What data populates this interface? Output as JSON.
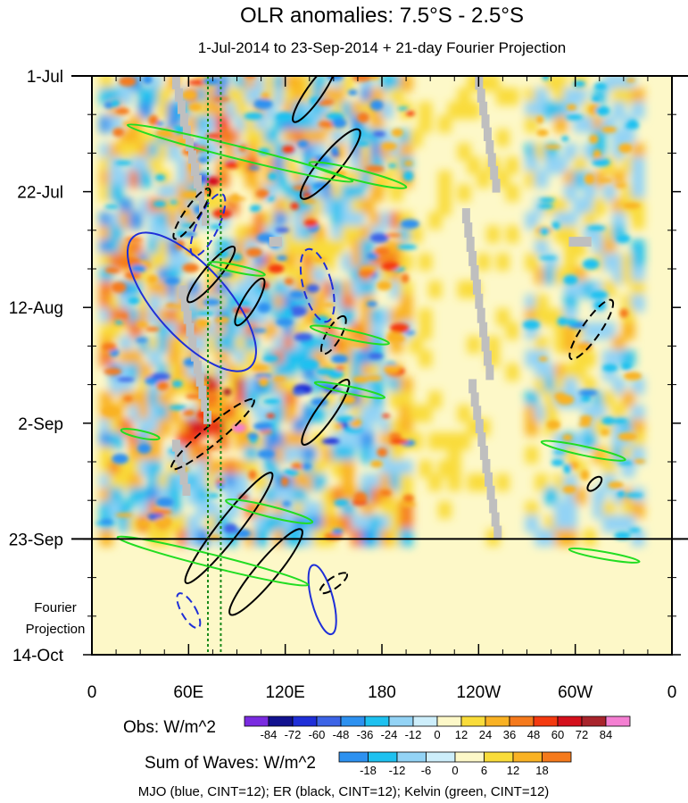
{
  "chart_data": {
    "type": "heatmap",
    "title": "OLR anomalies: 7.5°S - 2.5°S",
    "subtitle": "1-Jul-2014 to 23-Sep-2014 + 21-day Fourier Projection",
    "x_ticks": [
      "0",
      "60E",
      "120E",
      "180",
      "120W",
      "60W",
      "0"
    ],
    "x_values": [
      0,
      60,
      120,
      180,
      240,
      300,
      360
    ],
    "xlim": [
      0,
      360
    ],
    "y_ticks": [
      "1-Jul",
      "22-Jul",
      "12-Aug",
      "2-Sep",
      "23-Sep",
      "14-Oct"
    ],
    "y_values": [
      "2014-07-01",
      "2014-07-22",
      "2014-08-12",
      "2014-09-02",
      "2014-09-23",
      "2014-10-14"
    ],
    "y_side_label": [
      "Fourier",
      "Projection"
    ],
    "observed_end": "2014-09-23",
    "projection_end": "2014-10-14",
    "reference_longitudes": [
      72,
      80
    ],
    "obs_colorbar": {
      "label": "Obs: W/m^2",
      "levels": [
        -84,
        -72,
        -60,
        -48,
        -36,
        -24,
        -12,
        0,
        12,
        24,
        36,
        48,
        60,
        72,
        84
      ],
      "colors": [
        "#7a2be0",
        "#12128f",
        "#1f2fd8",
        "#3c64e6",
        "#2d91f0",
        "#1ec1f0",
        "#93d3f5",
        "#cdeefb",
        "#fdf8c8",
        "#f9dc3a",
        "#f9b224",
        "#f57a1c",
        "#f43a10",
        "#d4101c",
        "#a8242c",
        "#f47fd2"
      ]
    },
    "waves_colorbar": {
      "label": "Sum of Waves: W/m^2",
      "levels": [
        -18,
        -12,
        -6,
        0,
        6,
        12,
        18
      ],
      "colors": [
        "#2d91f0",
        "#1ec1f0",
        "#93d3f5",
        "#cdeefb",
        "#fdf8c8",
        "#f9dc3a",
        "#f9b224",
        "#f57a1c"
      ]
    },
    "contour_legend": "MJO (blue, CINT=12); ER (black, CINT=12); Kelvin (green, CINT=12)",
    "contour_colors": {
      "MJO": "#1f2fd8",
      "ER": "#000000",
      "Kelvin": "#22dd22"
    },
    "missing_color": "#bfbfbf"
  }
}
